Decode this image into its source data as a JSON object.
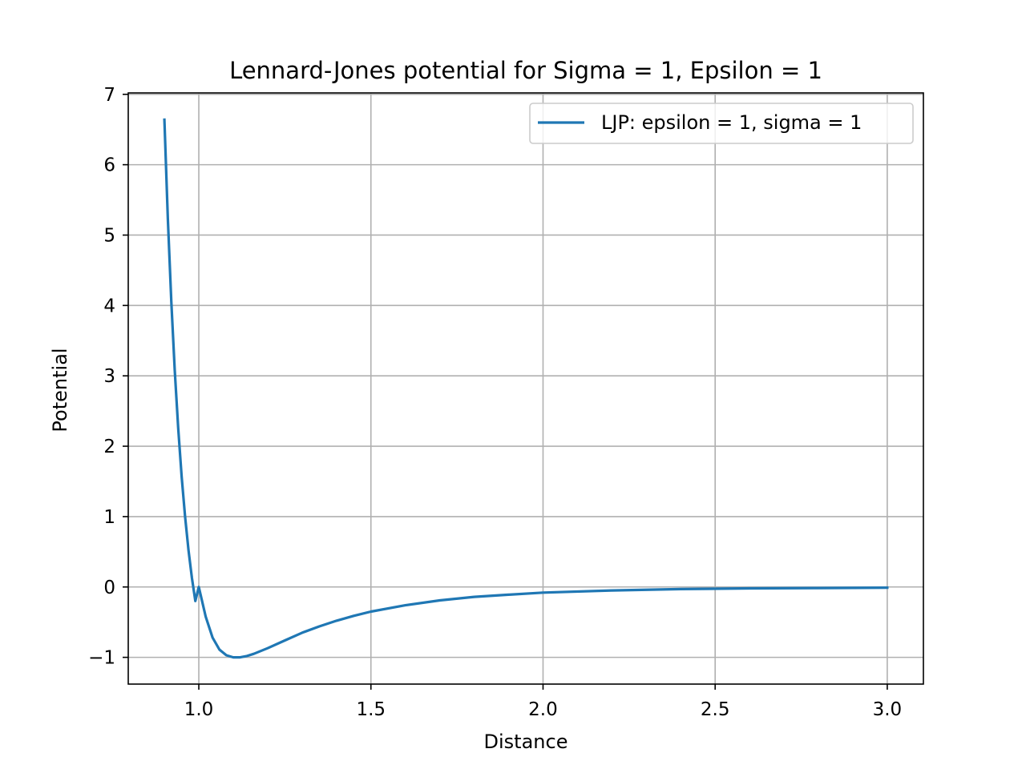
{
  "chart_data": {
    "type": "line",
    "title": "Lennard-Jones potential for Sigma = 1, Epsilon = 1",
    "xlabel": "Distance",
    "ylabel": "Potential",
    "xlim": [
      0.795,
      3.105
    ],
    "ylim": [
      -1.38,
      7.02
    ],
    "grid": true,
    "legend_position": "top-right",
    "x_ticks": [
      1.0,
      1.5,
      2.0,
      2.5,
      3.0
    ],
    "x_tick_labels": [
      "1.0",
      "1.5",
      "2.0",
      "2.5",
      "3.0"
    ],
    "y_ticks": [
      -1,
      0,
      1,
      2,
      3,
      4,
      5,
      6,
      7
    ],
    "y_tick_labels": [
      "−1",
      "0",
      "1",
      "2",
      "3",
      "4",
      "5",
      "6",
      "7"
    ],
    "series": [
      {
        "name": "LJP: epsilon = 1, sigma = 1",
        "color": "#1f77b4",
        "x": [
          0.9,
          0.91,
          0.92,
          0.93,
          0.94,
          0.95,
          0.96,
          0.97,
          0.98,
          0.99,
          1.0,
          1.02,
          1.04,
          1.06,
          1.08,
          1.1,
          1.12,
          1.14,
          1.16,
          1.18,
          1.2,
          1.25,
          1.3,
          1.35,
          1.4,
          1.45,
          1.5,
          1.6,
          1.7,
          1.8,
          1.9,
          2.0,
          2.2,
          2.4,
          2.6,
          2.8,
          3.0
        ],
        "y": [
          6.64,
          5.23,
          4.06,
          3.08,
          2.26,
          1.57,
          1.0,
          0.52,
          0.13,
          -0.2,
          0.0,
          -0.42,
          -0.72,
          -0.89,
          -0.97,
          -1.0,
          -1.0,
          -0.98,
          -0.95,
          -0.91,
          -0.87,
          -0.76,
          -0.65,
          -0.56,
          -0.48,
          -0.41,
          -0.35,
          -0.26,
          -0.19,
          -0.14,
          -0.11,
          -0.08,
          -0.05,
          -0.03,
          -0.02,
          -0.015,
          -0.01
        ]
      }
    ]
  }
}
